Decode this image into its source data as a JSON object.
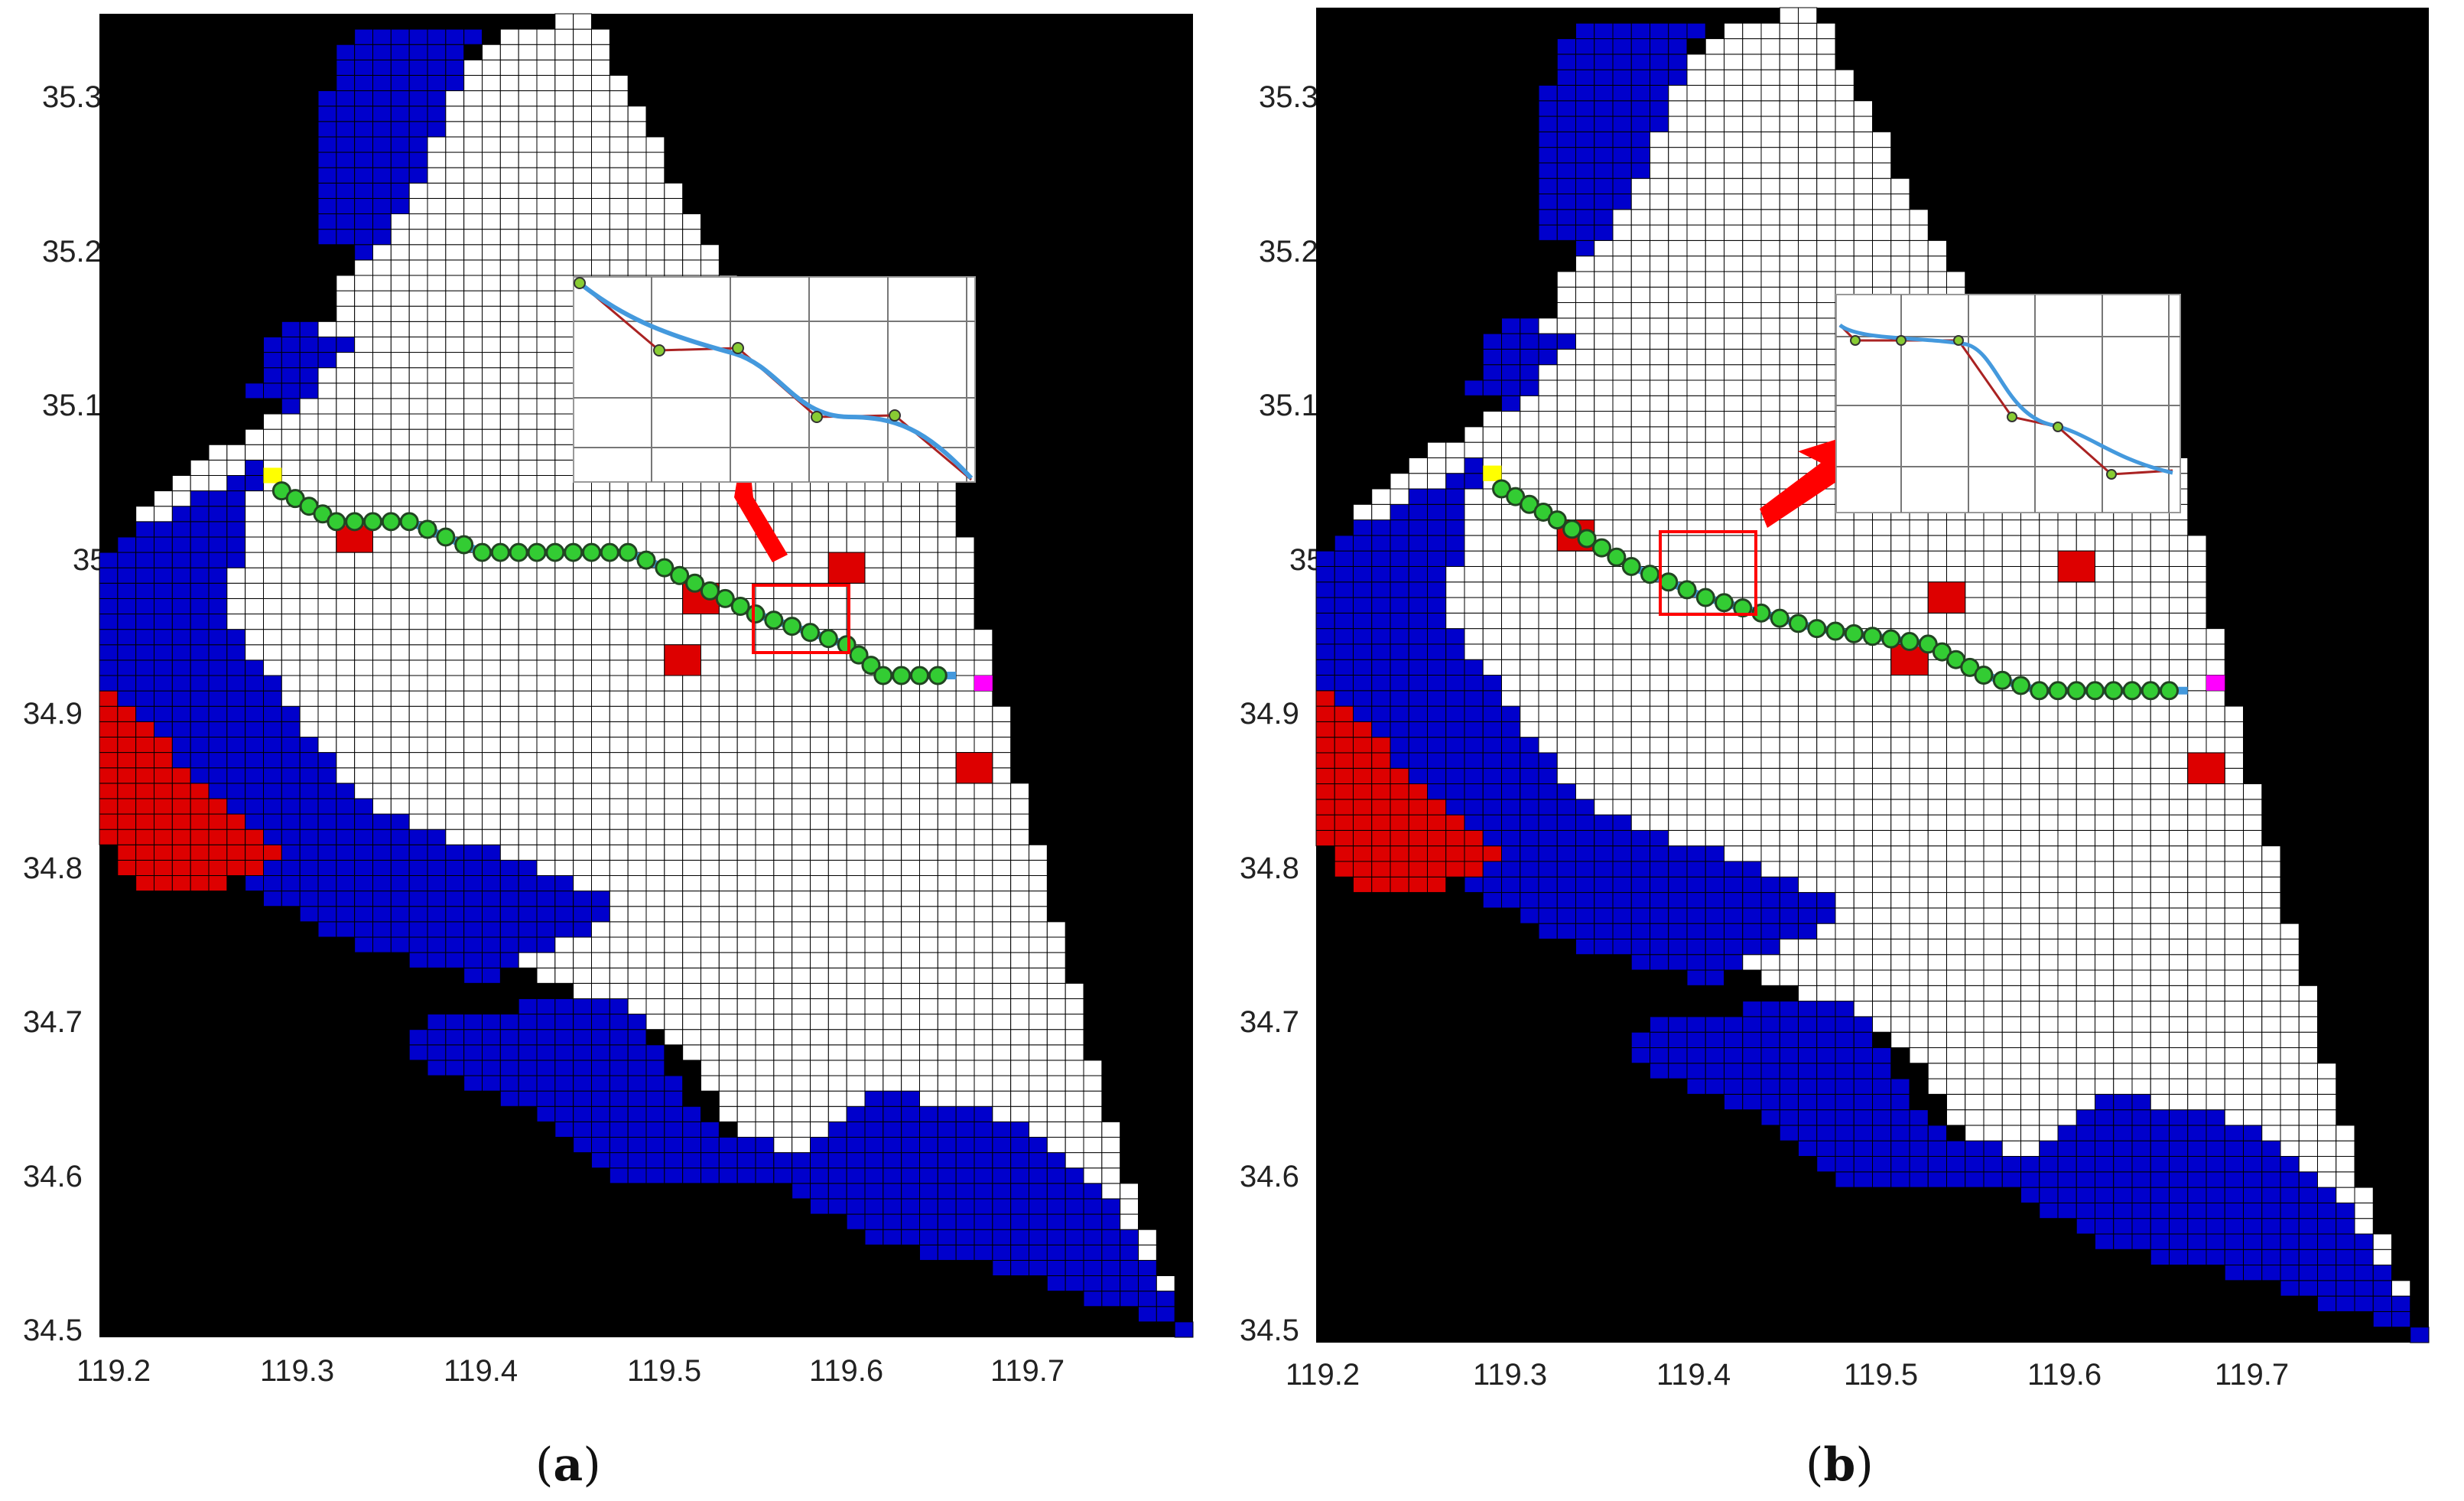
{
  "figure": {
    "panels": [
      {
        "id": "a",
        "caption_open": "(",
        "caption_letter": "a",
        "caption_close": ")",
        "x_ticks": [
          "119.2",
          "119.3",
          "119.4",
          "119.5",
          "119.6",
          "119.7"
        ],
        "y_ticks": [
          "35.3",
          "35.2",
          "35.1",
          "35",
          "34.9",
          "34.8",
          "34.7",
          "34.6",
          "34.5"
        ]
      },
      {
        "id": "b",
        "caption_open": "(",
        "caption_letter": "b",
        "caption_close": ")",
        "x_ticks": [
          "119.2",
          "119.3",
          "119.4",
          "119.5",
          "119.6",
          "119.7"
        ],
        "y_ticks": [
          "35.3",
          "35.2",
          "35.1",
          "35",
          "34.9",
          "34.8",
          "34.7",
          "34.6",
          "34.5"
        ]
      }
    ]
  },
  "colors": {
    "background": "#000000",
    "grid_cell": "#ffffff",
    "grid_line": "#000000",
    "water": "#0000cc",
    "obstacle": "#dd0000",
    "start": "#ffff00",
    "goal": "#ff00ff",
    "path_node": "#33cc33",
    "smooth_path": "#4499dd",
    "raw_path": "#aa2222",
    "highlight": "#ff0000"
  },
  "chart_data": [
    {
      "type": "map",
      "panel": "a",
      "x_range": [
        119.19,
        119.79
      ],
      "y_range": [
        34.5,
        35.36
      ],
      "path": [
        [
          119.29,
          35.05
        ],
        [
          119.32,
          35.03
        ],
        [
          119.36,
          35.03
        ],
        [
          119.4,
          35.01
        ],
        [
          119.48,
          35.01
        ],
        [
          119.5,
          35.0
        ],
        [
          119.55,
          34.97
        ],
        [
          119.6,
          34.95
        ],
        [
          119.62,
          34.93
        ],
        [
          119.66,
          34.93
        ]
      ],
      "obstacles": [
        [
          119.33,
          35.02
        ],
        [
          119.52,
          34.98
        ],
        [
          119.6,
          35.0
        ],
        [
          119.51,
          34.94
        ],
        [
          119.67,
          34.87
        ]
      ],
      "start": [
        119.285,
        35.06
      ],
      "goal": [
        119.675,
        34.925
      ]
    },
    {
      "type": "map",
      "panel": "b",
      "x_range": [
        119.19,
        119.79
      ],
      "y_range": [
        34.5,
        35.36
      ],
      "path": [
        [
          119.29,
          35.05
        ],
        [
          119.32,
          35.03
        ],
        [
          119.36,
          35.0
        ],
        [
          119.4,
          34.98
        ],
        [
          119.46,
          34.96
        ],
        [
          119.52,
          34.95
        ],
        [
          119.55,
          34.93
        ],
        [
          119.58,
          34.92
        ],
        [
          119.66,
          34.92
        ]
      ],
      "obstacles": [
        [
          119.33,
          35.02
        ],
        [
          119.53,
          34.98
        ],
        [
          119.6,
          35.0
        ],
        [
          119.51,
          34.94
        ],
        [
          119.67,
          34.87
        ]
      ],
      "start": [
        119.285,
        35.06
      ],
      "goal": [
        119.675,
        34.925
      ]
    }
  ]
}
